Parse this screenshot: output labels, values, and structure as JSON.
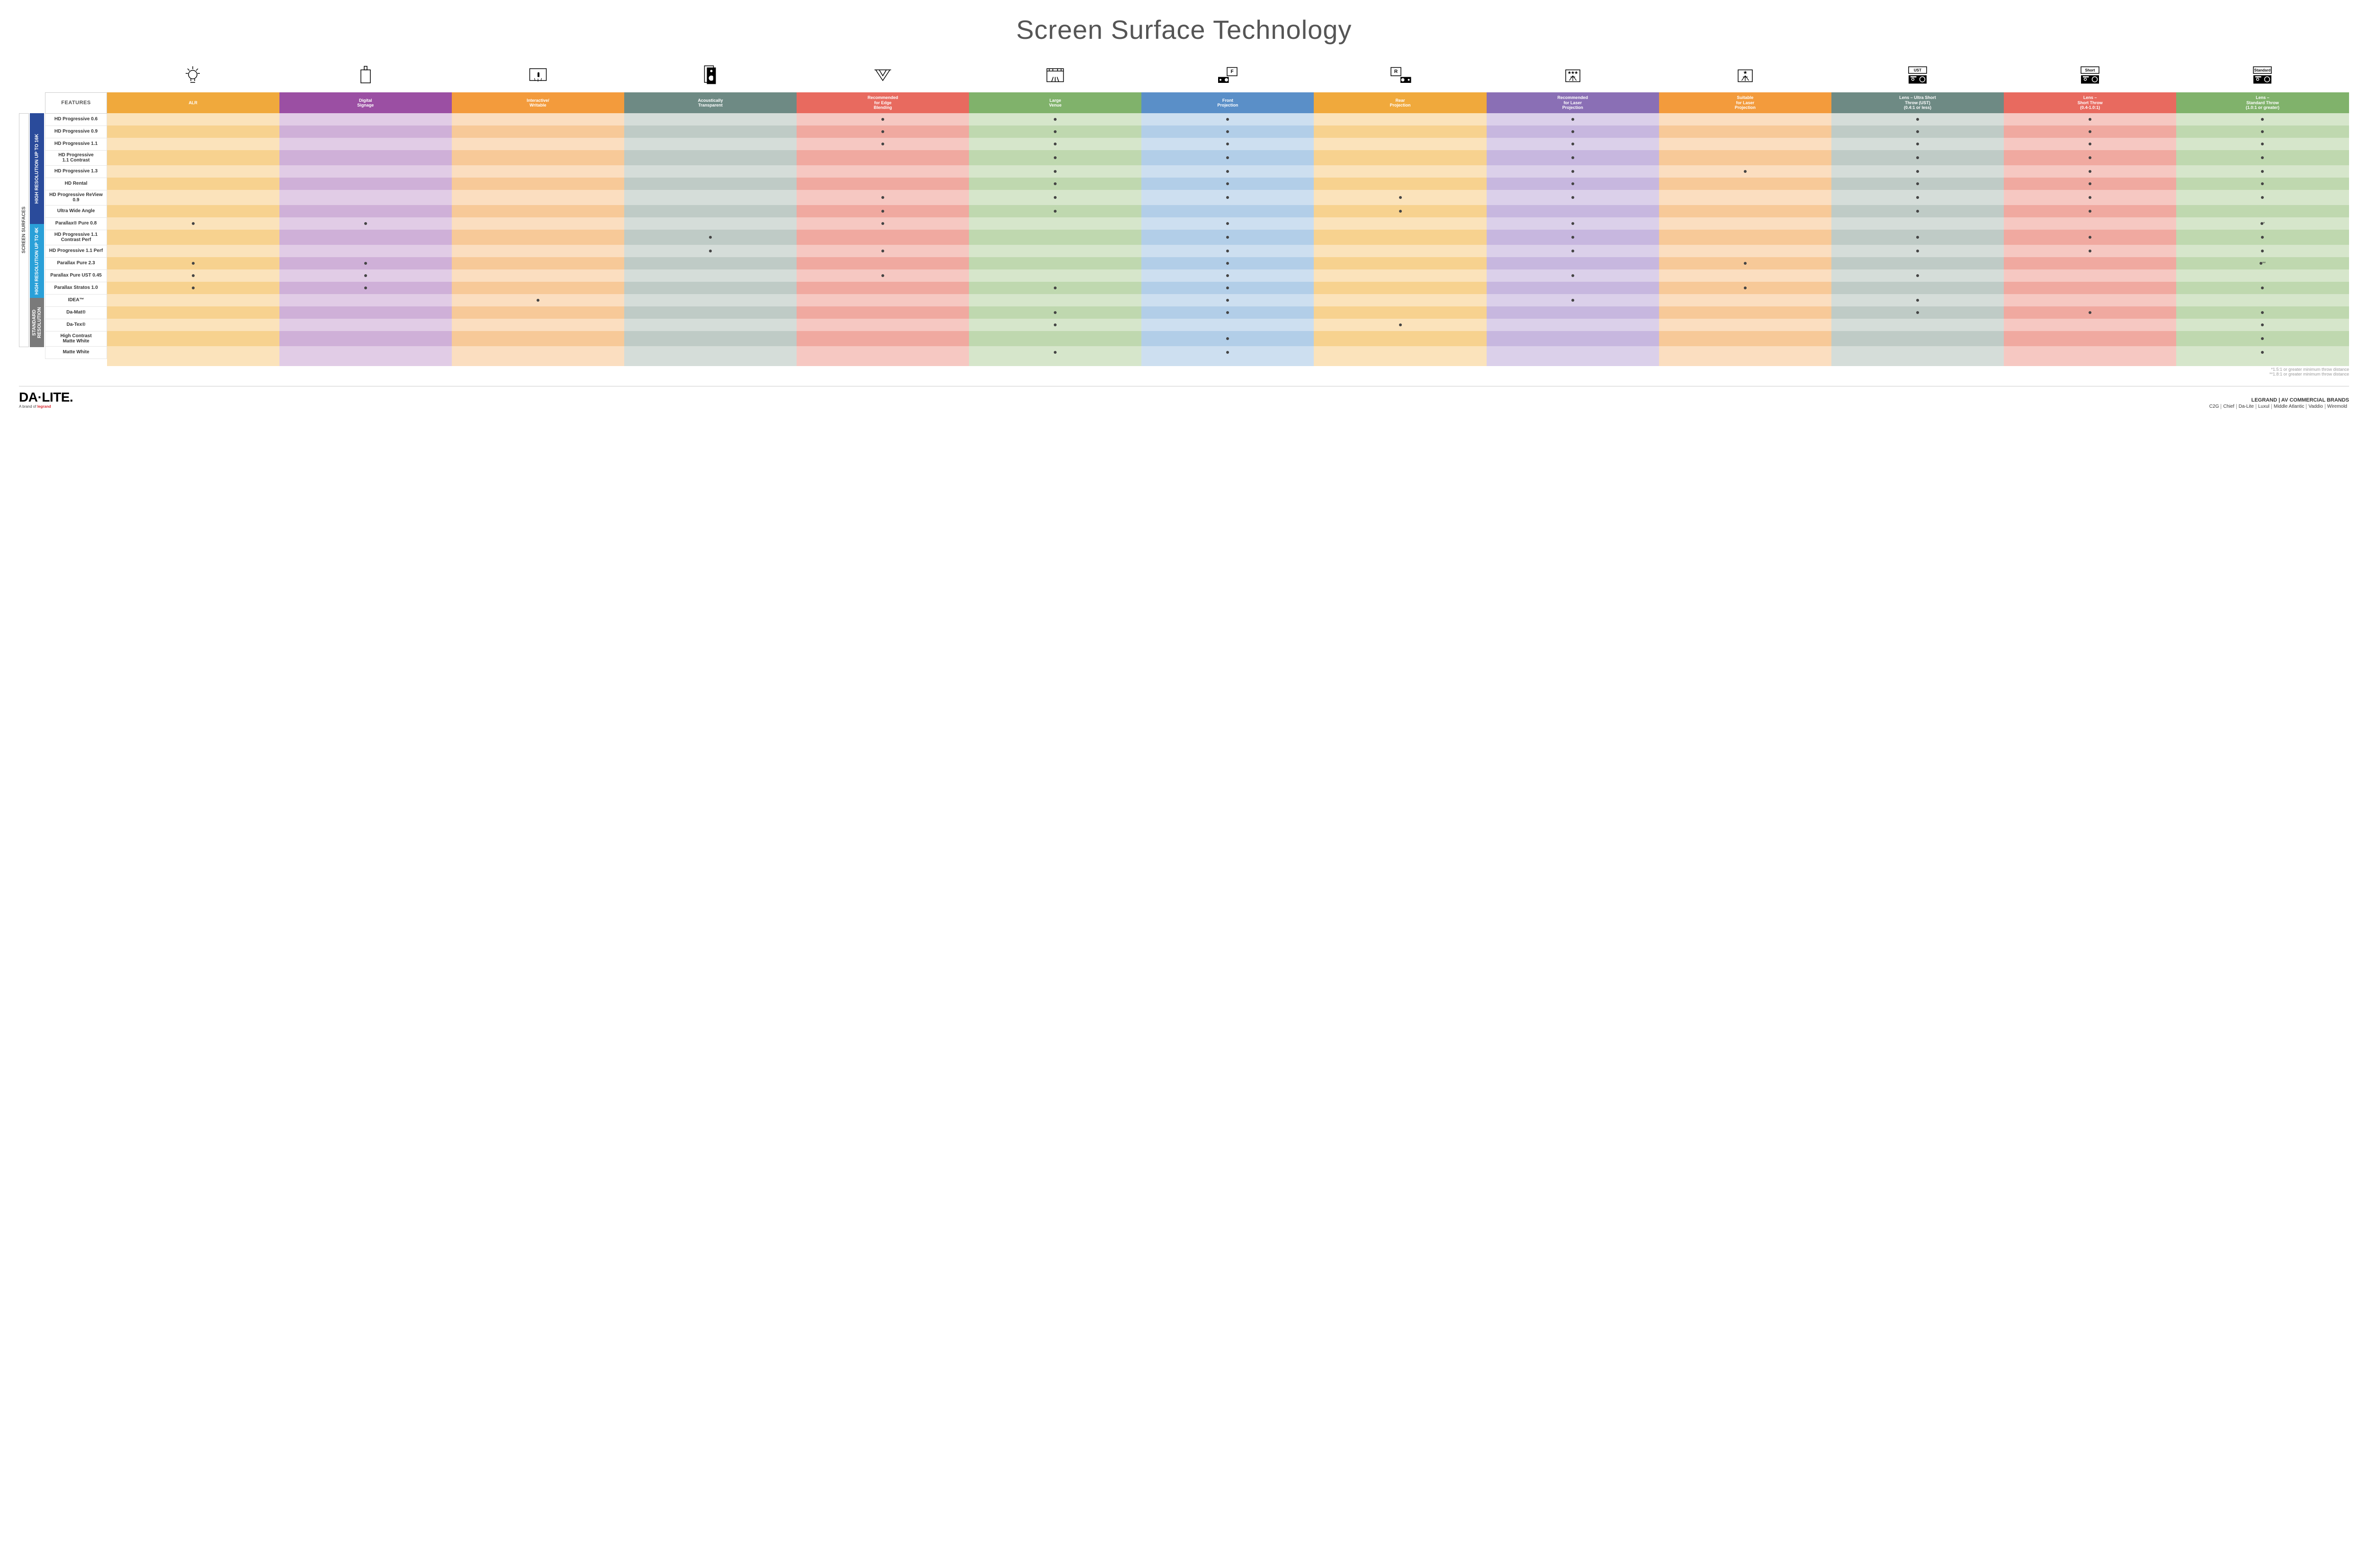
{
  "title": "Screen Surface Technology",
  "features_label": "FEATURES",
  "side_label": "SCREEN SURFACES",
  "colors": {
    "columns": [
      {
        "header": "#f0a93c",
        "light": "#fbe3bb",
        "dark": "#f7d28f"
      },
      {
        "header": "#9b4fa3",
        "light": "#e1cce6",
        "dark": "#cfb0d8"
      },
      {
        "header": "#f39b3c",
        "light": "#fbdec0",
        "dark": "#f7c998"
      },
      {
        "header": "#6e8a84",
        "light": "#d5ddd9",
        "dark": "#bfcbc6"
      },
      {
        "header": "#e86a5f",
        "light": "#f6c8c2",
        "dark": "#f0a9a0"
      },
      {
        "header": "#80b26b",
        "light": "#d6e6cb",
        "dark": "#bfd8af"
      },
      {
        "header": "#5a8fc8",
        "light": "#cddff0",
        "dark": "#b2cee8"
      },
      {
        "header": "#f0a93c",
        "light": "#fbe3bb",
        "dark": "#f7d28f"
      },
      {
        "header": "#8a6fb5",
        "light": "#dbd0ea",
        "dark": "#c7b7df"
      },
      {
        "header": "#f39b3c",
        "light": "#fbdec0",
        "dark": "#f7c998"
      },
      {
        "header": "#6e8a84",
        "light": "#d5ddd9",
        "dark": "#bfcbc6"
      },
      {
        "header": "#e86a5f",
        "light": "#f6c8c2",
        "dark": "#f0a9a0"
      },
      {
        "header": "#80b26b",
        "light": "#d6e6cb",
        "dark": "#bfd8af"
      }
    ],
    "groups": [
      "#2a4b9b",
      "#2aa0d8",
      "#7a7a7a"
    ]
  },
  "columns": [
    {
      "label": "ALR",
      "icon": "bulb"
    },
    {
      "label": "Digital\nSignage",
      "icon": "signage"
    },
    {
      "label": "Interactive/\nWritable",
      "icon": "touch"
    },
    {
      "label": "Acoustically\nTransparent",
      "icon": "speaker"
    },
    {
      "label": "Recommended\nfor Edge\nBlending",
      "icon": "blend"
    },
    {
      "label": "Large\nVenue",
      "icon": "venue"
    },
    {
      "label": "Front\nProjection",
      "icon": "front"
    },
    {
      "label": "Rear\nProjection",
      "icon": "rear"
    },
    {
      "label": "Recommended\nfor Laser\nProjection",
      "icon": "laser3"
    },
    {
      "label": "Suitable\nfor Laser\nProjection",
      "icon": "laser1"
    },
    {
      "label": "Lens – Ultra Short\nThrow (UST)\n(0.4:1 or less)",
      "icon": "ust"
    },
    {
      "label": "Lens –\nShort Throw\n(0.4-1.0:1)",
      "icon": "short"
    },
    {
      "label": "Lens –\nStandard Throw\n(1.0:1 or greater)",
      "icon": "standard"
    }
  ],
  "groups": [
    {
      "label": "HIGH RESOLUTION UP TO 16K",
      "rows": 9
    },
    {
      "label": "HIGH RESOLUTION UP TO 4K",
      "rows": 6
    },
    {
      "label": "STANDARD\nRESOLUTION",
      "rows": 4
    }
  ],
  "rows": [
    {
      "label": "HD Progressive 0.6",
      "dots": [
        0,
        0,
        0,
        0,
        1,
        1,
        1,
        0,
        1,
        0,
        1,
        1,
        1
      ]
    },
    {
      "label": "HD Progressive 0.9",
      "dots": [
        0,
        0,
        0,
        0,
        1,
        1,
        1,
        0,
        1,
        0,
        1,
        1,
        1
      ]
    },
    {
      "label": "HD Progressive 1.1",
      "dots": [
        0,
        0,
        0,
        0,
        1,
        1,
        1,
        0,
        1,
        0,
        1,
        1,
        1
      ]
    },
    {
      "label": "HD Progressive\n1.1 Contrast",
      "dots": [
        0,
        0,
        0,
        0,
        0,
        1,
        1,
        0,
        1,
        0,
        1,
        1,
        1
      ]
    },
    {
      "label": "HD Progressive 1.3",
      "dots": [
        0,
        0,
        0,
        0,
        0,
        1,
        1,
        0,
        1,
        1,
        1,
        1,
        1
      ]
    },
    {
      "label": "HD Rental",
      "dots": [
        0,
        0,
        0,
        0,
        0,
        1,
        1,
        0,
        1,
        0,
        1,
        1,
        1
      ]
    },
    {
      "label": "HD Progressive ReView 0.9",
      "dots": [
        0,
        0,
        0,
        0,
        1,
        1,
        1,
        1,
        1,
        0,
        1,
        1,
        1
      ]
    },
    {
      "label": "Ultra Wide Angle",
      "dots": [
        0,
        0,
        0,
        0,
        1,
        1,
        0,
        1,
        0,
        0,
        1,
        1,
        0
      ]
    },
    {
      "label": "Parallax® Pure 0.8",
      "dots": [
        1,
        1,
        0,
        0,
        1,
        0,
        1,
        0,
        1,
        0,
        0,
        0,
        1
      ],
      "suffix": "*"
    },
    {
      "label": "HD Progressive 1.1\nContrast Perf",
      "dots": [
        0,
        0,
        0,
        1,
        0,
        0,
        1,
        0,
        1,
        0,
        1,
        1,
        1
      ]
    },
    {
      "label": "HD Progressive 1.1 Perf",
      "dots": [
        0,
        0,
        0,
        1,
        1,
        0,
        1,
        0,
        1,
        0,
        1,
        1,
        1
      ]
    },
    {
      "label": "Parallax Pure 2.3",
      "dots": [
        1,
        1,
        0,
        0,
        0,
        0,
        1,
        0,
        0,
        1,
        0,
        0,
        1
      ],
      "suffix": "**"
    },
    {
      "label": "Parallax Pure UST 0.45",
      "dots": [
        1,
        1,
        0,
        0,
        1,
        0,
        1,
        0,
        1,
        0,
        1,
        0,
        0
      ]
    },
    {
      "label": "Parallax Stratos 1.0",
      "dots": [
        1,
        1,
        0,
        0,
        0,
        1,
        1,
        0,
        0,
        1,
        0,
        0,
        1
      ]
    },
    {
      "label": "IDEA™",
      "dots": [
        0,
        0,
        1,
        0,
        0,
        0,
        1,
        0,
        1,
        0,
        1,
        0,
        0
      ]
    },
    {
      "label": "Da-Mat®",
      "dots": [
        0,
        0,
        0,
        0,
        0,
        1,
        1,
        0,
        0,
        0,
        1,
        1,
        1
      ]
    },
    {
      "label": "Da-Tex®",
      "dots": [
        0,
        0,
        0,
        0,
        0,
        1,
        0,
        1,
        0,
        0,
        0,
        0,
        1
      ]
    },
    {
      "label": "High Contrast\nMatte White",
      "dots": [
        0,
        0,
        0,
        0,
        0,
        0,
        1,
        0,
        0,
        0,
        0,
        0,
        1
      ]
    },
    {
      "label": "Matte White",
      "dots": [
        0,
        0,
        0,
        0,
        0,
        1,
        1,
        0,
        0,
        0,
        0,
        0,
        1
      ]
    }
  ],
  "footnotes": [
    "*1.5:1 or greater minimum throw distance",
    "**1.8:1 or greater minimum throw distance"
  ],
  "footer": {
    "logo_main": "DA·LITE.",
    "logo_sub_prefix": "A brand of ",
    "logo_sub_brand": "legrand",
    "brands_title": "LEGRAND | AV COMMERCIAL BRANDS",
    "brands": [
      "C2G",
      "Chief",
      "Da-Lite",
      "Luxul",
      "Middle Atlantic",
      "Vaddio",
      "Wiremold"
    ]
  }
}
